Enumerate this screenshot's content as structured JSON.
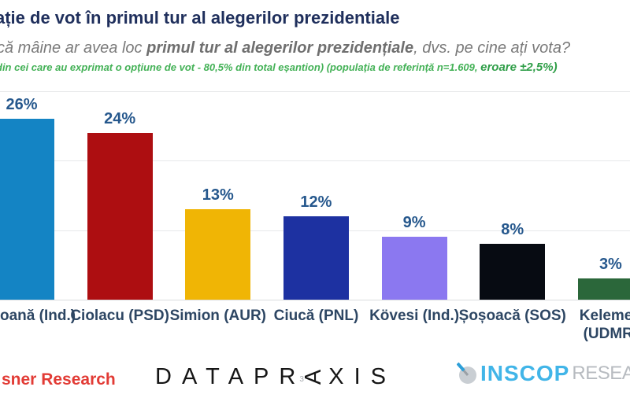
{
  "header": {
    "title": "ație de vot în primul tur al alegerilor prezidentiale",
    "subtitle_pre": "că mâine ar avea loc ",
    "subtitle_bold": "primul tur al alegerilor prezidențiale",
    "subtitle_post": ", dvs. pe cine ați vota?",
    "methodology_main": "din cei care au exprimat o opțiune de vot - 80,5% din total eșantion) (populația de referință n=1.609, ",
    "methodology_error": "eroare ±2,5%)"
  },
  "chart_data": {
    "type": "bar",
    "title": "ație de vot în primul tur al alegerilor prezidentiale",
    "question": "că mâine ar avea loc primul tur al alegerilor prezidențiale, dvs. pe cine ați vota?",
    "categories": [
      "oană (Ind.)",
      "Ciolacu (PSD)",
      "Simion (AUR)",
      "Ciucă (PNL)",
      "Kövesi (Ind.)",
      "Șoșoacă (SOS)",
      "Kelemen (UDMR)"
    ],
    "values": [
      26,
      24,
      13,
      12,
      9,
      8,
      3
    ],
    "value_labels": [
      "26%",
      "24%",
      "13%",
      "12%",
      "9%",
      "8%",
      "3%"
    ],
    "value_suffix": "%",
    "bar_colors": [
      "#1484c4",
      "#ad0e11",
      "#f0b505",
      "#1d31a1",
      "#8b78f0",
      "#070b12",
      "#2b673a"
    ],
    "xlabel": "",
    "ylabel": "",
    "ylim": [
      0,
      30
    ],
    "gridline_step": 10,
    "grid": true,
    "legend": false
  },
  "candidates": [
    {
      "label_line1": "oană (Ind.)",
      "label_line2": "",
      "align": "left",
      "pct_label": "26%",
      "value": 26,
      "color": "#1484c4"
    },
    {
      "label_line1": "Ciolacu (PSD)",
      "label_line2": "",
      "align": "center",
      "pct_label": "24%",
      "value": 24,
      "color": "#ad0e11"
    },
    {
      "label_line1": "Simion (AUR)",
      "label_line2": "",
      "align": "center",
      "pct_label": "13%",
      "value": 13,
      "color": "#f0b505"
    },
    {
      "label_line1": "Ciucă (PNL)",
      "label_line2": "",
      "align": "center",
      "pct_label": "12%",
      "value": 12,
      "color": "#1d31a1"
    },
    {
      "label_line1": "Kövesi (Ind.)",
      "label_line2": "",
      "align": "center",
      "pct_label": "9%",
      "value": 9,
      "color": "#8b78f0"
    },
    {
      "label_line1": "Șoșoacă (SOS)",
      "label_line2": "",
      "align": "center",
      "pct_label": "8%",
      "value": 8,
      "color": "#070b12"
    },
    {
      "label_line1": "Kelemen",
      "label_line2": "(UDMR)",
      "align": "center",
      "pct_label": "3%",
      "value": 3,
      "color": "#2b673a"
    }
  ],
  "footer": {
    "left_logo": "sner Research",
    "datapraxis_letters": "DATAPR",
    "datapraxis_mark": "3",
    "datapraxis_a": "A",
    "datapraxis_tail": "XIS",
    "inscop_name": "INSCOP",
    "inscop_research": "RESEARCH"
  },
  "colors": {
    "title_text": "#1f2f5c",
    "subtitle_text": "#7a7a7a",
    "methodology_green": "#43b156",
    "value_label_blue": "#26588d",
    "category_label": "#2d4663",
    "left_logo_red": "#e23b35",
    "inscop_blue": "#41b5e8",
    "inscop_gray": "#b7bbc0",
    "gridline": "#e7e8ea"
  }
}
